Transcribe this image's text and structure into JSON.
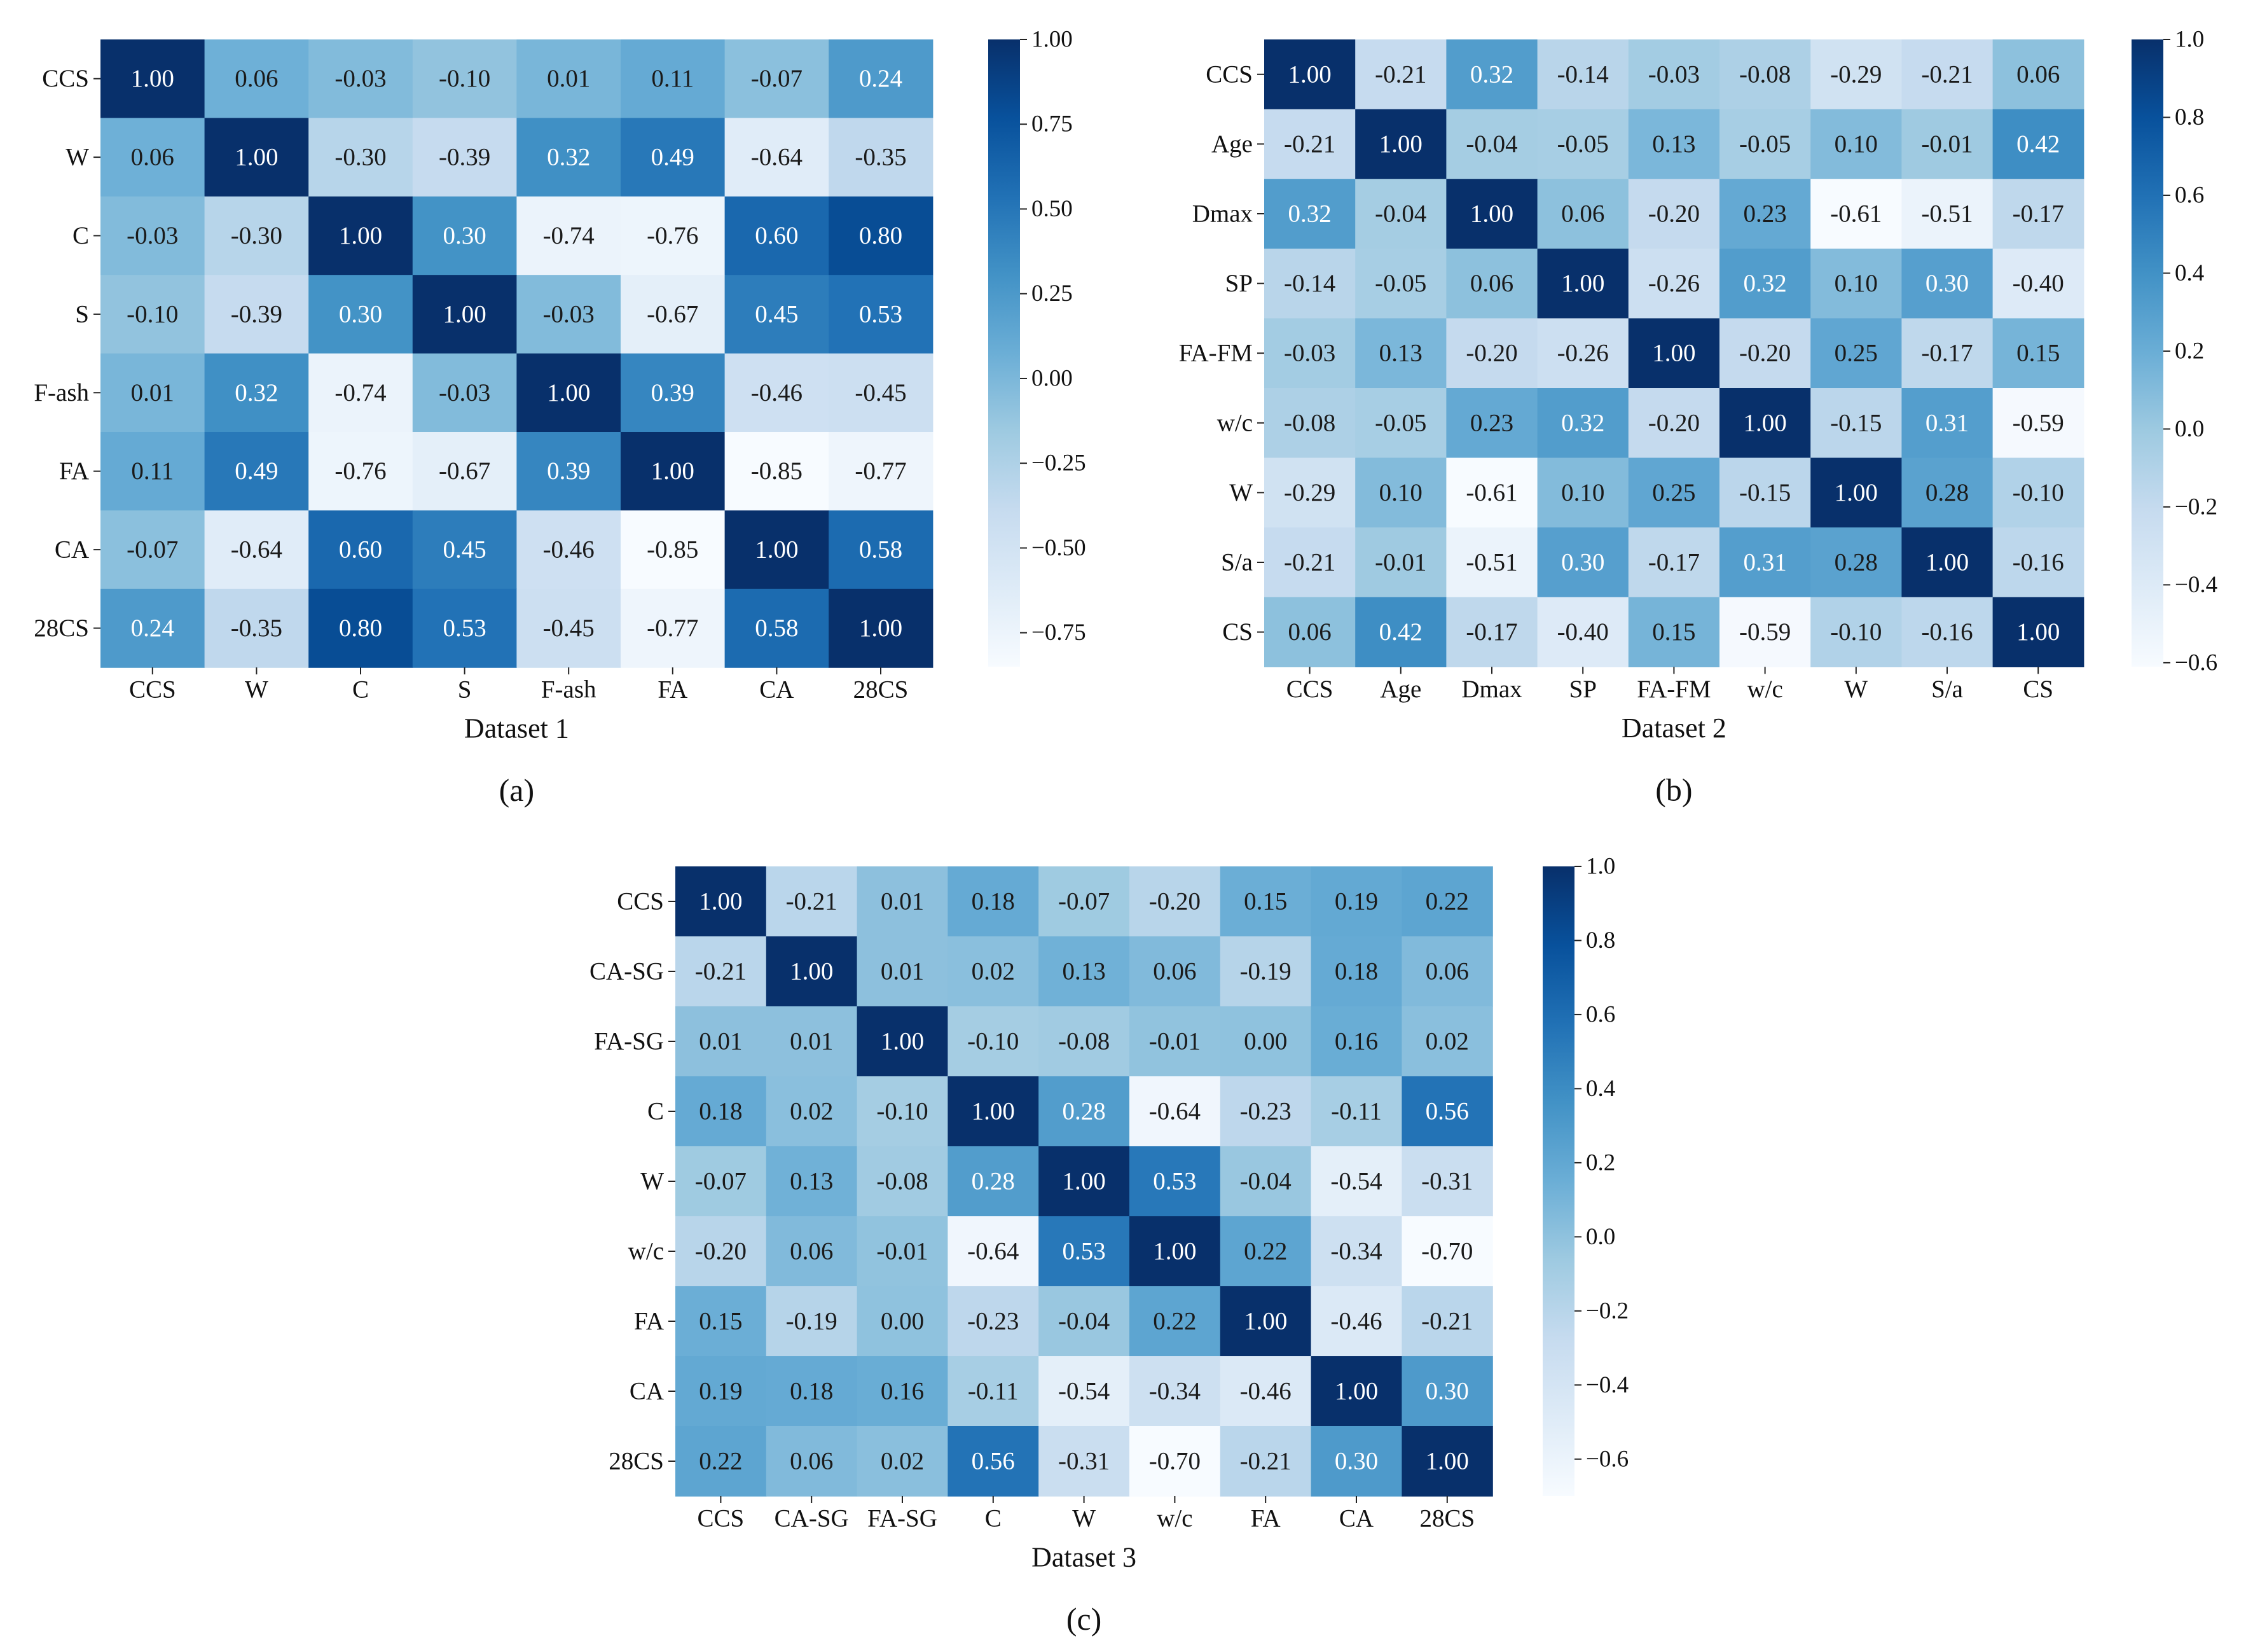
{
  "charts": [
    {
      "chart_data": {
        "type": "heatmap",
        "title": "Dataset 1",
        "panel_label": "(a)",
        "variables": [
          "CCS",
          "W",
          "C",
          "S",
          "F-ash",
          "FA",
          "CA",
          "28CS"
        ],
        "matrix": [
          [
            1.0,
            0.06,
            -0.03,
            -0.1,
            0.01,
            0.11,
            -0.07,
            0.24
          ],
          [
            0.06,
            1.0,
            -0.3,
            -0.39,
            0.32,
            0.49,
            -0.64,
            -0.35
          ],
          [
            -0.03,
            -0.3,
            1.0,
            0.3,
            -0.74,
            -0.76,
            0.6,
            0.8
          ],
          [
            -0.1,
            -0.39,
            0.3,
            1.0,
            -0.03,
            -0.67,
            0.45,
            0.53
          ],
          [
            0.01,
            0.32,
            -0.74,
            -0.03,
            1.0,
            0.39,
            -0.46,
            -0.45
          ],
          [
            0.11,
            0.49,
            -0.76,
            -0.67,
            0.39,
            1.0,
            -0.85,
            -0.77
          ],
          [
            -0.07,
            -0.64,
            0.6,
            0.45,
            -0.46,
            -0.85,
            1.0,
            0.58
          ],
          [
            0.24,
            -0.35,
            0.8,
            0.53,
            -0.45,
            -0.77,
            0.58,
            1.0
          ]
        ],
        "cell_labels": [
          [
            "1.00",
            "0.06",
            "-0.03",
            "-0.10",
            "0.01",
            "0.11",
            "-0.07",
            "0.24"
          ],
          [
            "0.06",
            "1.00",
            "-0.30",
            "-0.39",
            "0.32",
            "0.49",
            "-0.64",
            "-0.35"
          ],
          [
            "-0.03",
            "-0.30",
            "1.00",
            "0.30",
            "-0.74",
            "-0.76",
            "0.60",
            "0.80"
          ],
          [
            "-0.10",
            "-0.39",
            "0.30",
            "1.00",
            "-0.03",
            "-0.67",
            "0.45",
            "0.53"
          ],
          [
            "0.01",
            "0.32",
            "-0.74",
            "-0.03",
            "1.00",
            "0.39",
            "-0.46",
            "-0.45"
          ],
          [
            "0.11",
            "0.49",
            "-0.76",
            "-0.67",
            "0.39",
            "1.00",
            "-0.85",
            "-0.77"
          ],
          [
            "-0.07",
            "-0.64",
            "0.60",
            "0.45",
            "-0.46",
            "-0.85",
            "1.00",
            "0.58"
          ],
          [
            "0.24",
            "-0.35",
            "0.80",
            "0.53",
            "-0.45",
            "-0.77",
            "0.58",
            "1.00"
          ]
        ],
        "colorbar": {
          "range": [
            -0.85,
            1.0
          ],
          "ticks": [
            1.0,
            0.75,
            0.5,
            0.25,
            0.0,
            -0.25,
            -0.5,
            -0.75
          ],
          "tick_labels": [
            "1.00",
            "0.75",
            "0.50",
            "0.25",
            "0.00",
            "−0.25",
            "−0.50",
            "−0.75"
          ]
        },
        "colormap": "Blues"
      }
    },
    {
      "chart_data": {
        "type": "heatmap",
        "title": "Dataset 2",
        "panel_label": "(b)",
        "variables": [
          "CCS",
          "Age",
          "Dmax",
          "SP",
          "FA-FM",
          "w/c",
          "W",
          "S/a",
          "CS"
        ],
        "matrix": [
          [
            1.0,
            -0.21,
            0.32,
            -0.14,
            -0.03,
            -0.08,
            -0.29,
            -0.21,
            0.06
          ],
          [
            -0.21,
            1.0,
            -0.04,
            -0.05,
            0.13,
            -0.05,
            0.1,
            -0.01,
            0.42
          ],
          [
            0.32,
            -0.04,
            1.0,
            0.06,
            -0.2,
            0.23,
            -0.61,
            -0.51,
            -0.17
          ],
          [
            -0.14,
            -0.05,
            0.06,
            1.0,
            -0.26,
            0.32,
            0.1,
            0.3,
            -0.4
          ],
          [
            -0.03,
            0.13,
            -0.2,
            -0.26,
            1.0,
            -0.2,
            0.25,
            -0.17,
            0.15
          ],
          [
            -0.08,
            -0.05,
            0.23,
            0.32,
            -0.2,
            1.0,
            -0.15,
            0.31,
            -0.59
          ],
          [
            -0.29,
            0.1,
            -0.61,
            0.1,
            0.25,
            -0.15,
            1.0,
            0.28,
            -0.1
          ],
          [
            -0.21,
            -0.01,
            -0.51,
            0.3,
            -0.17,
            0.31,
            0.28,
            1.0,
            -0.16
          ],
          [
            0.06,
            0.42,
            -0.17,
            -0.4,
            0.15,
            -0.59,
            -0.1,
            -0.16,
            1.0
          ]
        ],
        "cell_labels": [
          [
            "1.00",
            "-0.21",
            "0.32",
            "-0.14",
            "-0.03",
            "-0.08",
            "-0.29",
            "-0.21",
            "0.06"
          ],
          [
            "-0.21",
            "1.00",
            "-0.04",
            "-0.05",
            "0.13",
            "-0.05",
            "0.10",
            "-0.01",
            "0.42"
          ],
          [
            "0.32",
            "-0.04",
            "1.00",
            "0.06",
            "-0.20",
            "0.23",
            "-0.61",
            "-0.51",
            "-0.17"
          ],
          [
            "-0.14",
            "-0.05",
            "0.06",
            "1.00",
            "-0.26",
            "0.32",
            "0.10",
            "0.30",
            "-0.40"
          ],
          [
            "-0.03",
            "0.13",
            "-0.20",
            "-0.26",
            "1.00",
            "-0.20",
            "0.25",
            "-0.17",
            "0.15"
          ],
          [
            "-0.08",
            "-0.05",
            "0.23",
            "0.32",
            "-0.20",
            "1.00",
            "-0.15",
            "0.31",
            "-0.59"
          ],
          [
            "-0.29",
            "0.10",
            "-0.61",
            "0.10",
            "0.25",
            "-0.15",
            "1.00",
            "0.28",
            "-0.10"
          ],
          [
            "-0.21",
            "-0.01",
            "-0.51",
            "0.30",
            "-0.17",
            "0.31",
            "0.28",
            "1.00",
            "-0.16"
          ],
          [
            "0.06",
            "0.42",
            "-0.17",
            "-0.40",
            "0.15",
            "-0.59",
            "-0.10",
            "-0.16",
            "1.00"
          ]
        ],
        "colorbar": {
          "range": [
            -0.61,
            1.0
          ],
          "ticks": [
            1.0,
            0.8,
            0.6,
            0.4,
            0.2,
            0.0,
            -0.2,
            -0.4,
            -0.6
          ],
          "tick_labels": [
            "1.0",
            "0.8",
            "0.6",
            "0.4",
            "0.2",
            "0.0",
            "−0.2",
            "−0.4",
            "−0.6"
          ]
        },
        "colormap": "Blues"
      }
    },
    {
      "chart_data": {
        "type": "heatmap",
        "title": "Dataset 3",
        "panel_label": "(c)",
        "variables": [
          "CCS",
          "CA-SG",
          "FA-SG",
          "C",
          "W",
          "w/c",
          "FA",
          "CA",
          "28CS"
        ],
        "matrix": [
          [
            1.0,
            -0.21,
            0.01,
            0.18,
            -0.07,
            -0.2,
            0.15,
            0.19,
            0.22
          ],
          [
            -0.21,
            1.0,
            0.01,
            0.02,
            0.13,
            0.06,
            -0.19,
            0.18,
            0.06
          ],
          [
            0.01,
            0.01,
            1.0,
            -0.1,
            -0.08,
            -0.01,
            0.0,
            0.16,
            0.02
          ],
          [
            0.18,
            0.02,
            -0.1,
            1.0,
            0.28,
            -0.64,
            -0.23,
            -0.11,
            0.56
          ],
          [
            -0.07,
            0.13,
            -0.08,
            0.28,
            1.0,
            0.53,
            -0.04,
            -0.54,
            -0.31
          ],
          [
            -0.2,
            0.06,
            -0.01,
            -0.64,
            0.53,
            1.0,
            0.22,
            -0.34,
            -0.7
          ],
          [
            0.15,
            -0.19,
            0.0,
            -0.23,
            -0.04,
            0.22,
            1.0,
            -0.46,
            -0.21
          ],
          [
            0.19,
            0.18,
            0.16,
            -0.11,
            -0.54,
            -0.34,
            -0.46,
            1.0,
            0.3
          ],
          [
            0.22,
            0.06,
            0.02,
            0.56,
            -0.31,
            -0.7,
            -0.21,
            0.3,
            1.0
          ]
        ],
        "cell_labels": [
          [
            "1.00",
            "-0.21",
            "0.01",
            "0.18",
            "-0.07",
            "-0.20",
            "0.15",
            "0.19",
            "0.22"
          ],
          [
            "-0.21",
            "1.00",
            "0.01",
            "0.02",
            "0.13",
            "0.06",
            "-0.19",
            "0.18",
            "0.06"
          ],
          [
            "0.01",
            "0.01",
            "1.00",
            "-0.10",
            "-0.08",
            "-0.01",
            "0.00",
            "0.16",
            "0.02"
          ],
          [
            "0.18",
            "0.02",
            "-0.10",
            "1.00",
            "0.28",
            "-0.64",
            "-0.23",
            "-0.11",
            "0.56"
          ],
          [
            "-0.07",
            "0.13",
            "-0.08",
            "0.28",
            "1.00",
            "0.53",
            "-0.04",
            "-0.54",
            "-0.31"
          ],
          [
            "-0.20",
            "0.06",
            "-0.01",
            "-0.64",
            "0.53",
            "1.00",
            "0.22",
            "-0.34",
            "-0.70"
          ],
          [
            "0.15",
            "-0.19",
            "0.00",
            "-0.23",
            "-0.04",
            "0.22",
            "1.00",
            "-0.46",
            "-0.21"
          ],
          [
            "0.19",
            "0.18",
            "0.16",
            "-0.11",
            "-0.54",
            "-0.34",
            "-0.46",
            "1.00",
            "0.30"
          ],
          [
            "0.22",
            "0.06",
            "0.02",
            "0.56",
            "-0.31",
            "-0.70",
            "-0.21",
            "0.30",
            "1.00"
          ]
        ],
        "colorbar": {
          "range": [
            -0.7,
            1.0
          ],
          "ticks": [
            1.0,
            0.8,
            0.6,
            0.4,
            0.2,
            0.0,
            -0.2,
            -0.4,
            -0.6
          ],
          "tick_labels": [
            "1.0",
            "0.8",
            "0.6",
            "0.4",
            "0.2",
            "0.0",
            "−0.2",
            "−0.4",
            "−0.6"
          ]
        },
        "colormap": "Blues"
      }
    }
  ]
}
